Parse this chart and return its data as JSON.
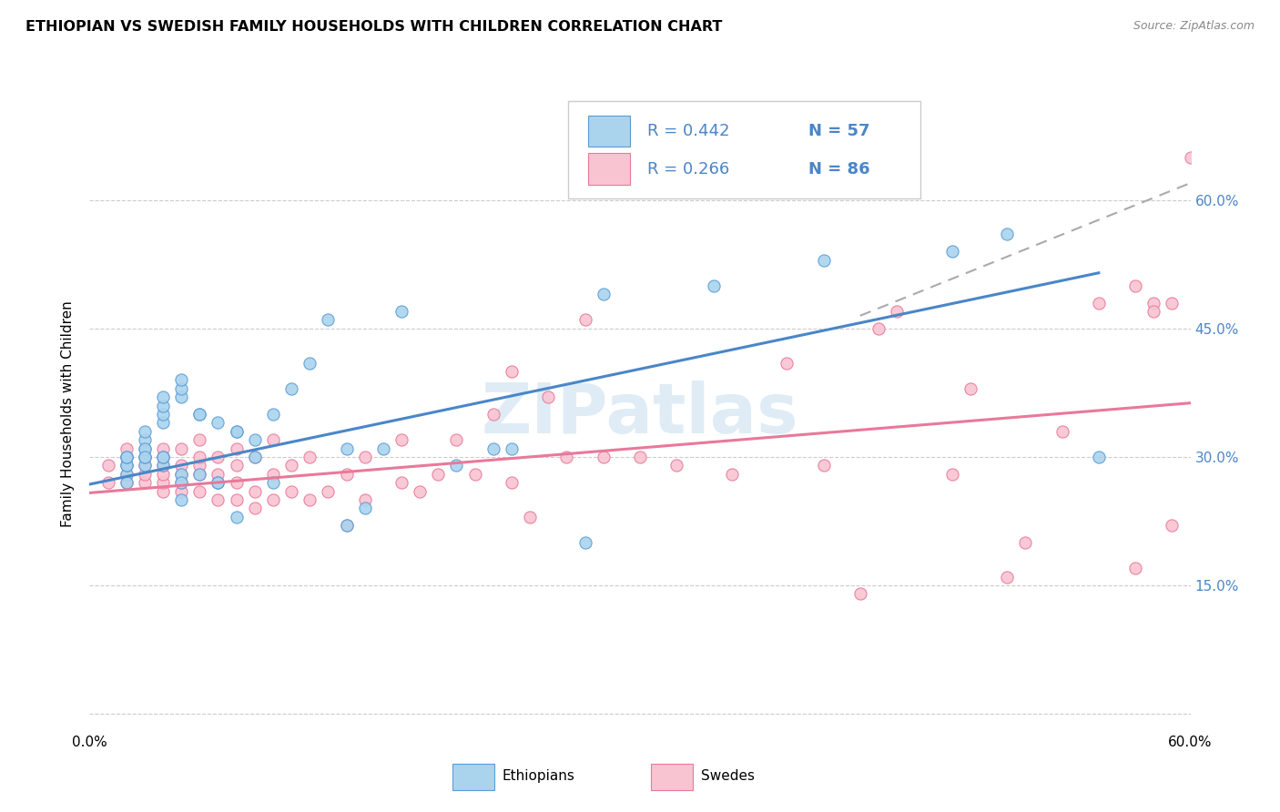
{
  "title": "ETHIOPIAN VS SWEDISH FAMILY HOUSEHOLDS WITH CHILDREN CORRELATION CHART",
  "source": "Source: ZipAtlas.com",
  "ylabel": "Family Households with Children",
  "watermark": "ZIPatlas",
  "xlim": [
    0.0,
    0.6
  ],
  "ylim": [
    -0.02,
    0.72
  ],
  "yticks": [
    0.0,
    0.15,
    0.3,
    0.45,
    0.6
  ],
  "ytick_labels": [
    "",
    "15.0%",
    "30.0%",
    "45.0%",
    "60.0%"
  ],
  "xticks": [
    0.0,
    0.1,
    0.2,
    0.3,
    0.4,
    0.5,
    0.6
  ],
  "xtick_labels": [
    "0.0%",
    "",
    "",
    "",
    "",
    "",
    "60.0%"
  ],
  "legend_R_ethiopian": "R = 0.442",
  "legend_N_ethiopian": "N = 57",
  "legend_R_swedish": "R = 0.266",
  "legend_N_swedish": "N = 86",
  "ethiopian_fill": "#aad4ee",
  "swedish_fill": "#f9c4d2",
  "ethiopian_edge": "#5b9bd5",
  "swedish_edge": "#e8799a",
  "trend_ethiopian_color": "#4a86c8",
  "trend_swedish_color": "#e8799a",
  "trend_dashed_color": "#aaaaaa",
  "ethiopian_scatter_x": [
    0.02,
    0.02,
    0.02,
    0.02,
    0.02,
    0.02,
    0.03,
    0.03,
    0.03,
    0.03,
    0.03,
    0.03,
    0.03,
    0.04,
    0.04,
    0.04,
    0.04,
    0.04,
    0.04,
    0.04,
    0.05,
    0.05,
    0.05,
    0.05,
    0.05,
    0.05,
    0.06,
    0.06,
    0.06,
    0.07,
    0.07,
    0.07,
    0.08,
    0.08,
    0.08,
    0.09,
    0.09,
    0.1,
    0.1,
    0.11,
    0.12,
    0.13,
    0.14,
    0.14,
    0.15,
    0.16,
    0.17,
    0.2,
    0.22,
    0.23,
    0.27,
    0.28,
    0.34,
    0.4,
    0.47,
    0.5,
    0.55
  ],
  "ethiopian_scatter_y": [
    0.28,
    0.29,
    0.29,
    0.3,
    0.3,
    0.27,
    0.29,
    0.3,
    0.31,
    0.32,
    0.33,
    0.31,
    0.3,
    0.34,
    0.35,
    0.36,
    0.37,
    0.29,
    0.3,
    0.3,
    0.37,
    0.38,
    0.39,
    0.28,
    0.27,
    0.25,
    0.35,
    0.35,
    0.28,
    0.34,
    0.27,
    0.27,
    0.33,
    0.33,
    0.23,
    0.32,
    0.3,
    0.35,
    0.27,
    0.38,
    0.41,
    0.46,
    0.31,
    0.22,
    0.24,
    0.31,
    0.47,
    0.29,
    0.31,
    0.31,
    0.2,
    0.49,
    0.5,
    0.53,
    0.54,
    0.56,
    0.3
  ],
  "swedish_scatter_x": [
    0.01,
    0.01,
    0.02,
    0.02,
    0.02,
    0.02,
    0.02,
    0.02,
    0.03,
    0.03,
    0.03,
    0.03,
    0.04,
    0.04,
    0.04,
    0.04,
    0.04,
    0.04,
    0.05,
    0.05,
    0.05,
    0.05,
    0.05,
    0.06,
    0.06,
    0.06,
    0.06,
    0.06,
    0.07,
    0.07,
    0.07,
    0.07,
    0.08,
    0.08,
    0.08,
    0.08,
    0.09,
    0.09,
    0.09,
    0.1,
    0.1,
    0.1,
    0.11,
    0.11,
    0.12,
    0.12,
    0.13,
    0.14,
    0.14,
    0.15,
    0.15,
    0.17,
    0.17,
    0.18,
    0.19,
    0.2,
    0.21,
    0.22,
    0.23,
    0.23,
    0.24,
    0.25,
    0.26,
    0.27,
    0.28,
    0.3,
    0.32,
    0.35,
    0.38,
    0.4,
    0.42,
    0.43,
    0.44,
    0.47,
    0.48,
    0.5,
    0.51,
    0.53,
    0.55,
    0.57,
    0.57,
    0.58,
    0.58,
    0.59,
    0.59,
    0.6
  ],
  "swedish_scatter_y": [
    0.27,
    0.29,
    0.27,
    0.28,
    0.29,
    0.3,
    0.3,
    0.31,
    0.27,
    0.28,
    0.29,
    0.3,
    0.26,
    0.27,
    0.28,
    0.29,
    0.3,
    0.31,
    0.26,
    0.27,
    0.28,
    0.29,
    0.31,
    0.26,
    0.28,
    0.29,
    0.3,
    0.32,
    0.25,
    0.27,
    0.28,
    0.3,
    0.25,
    0.27,
    0.29,
    0.31,
    0.24,
    0.26,
    0.3,
    0.25,
    0.28,
    0.32,
    0.26,
    0.29,
    0.25,
    0.3,
    0.26,
    0.22,
    0.28,
    0.25,
    0.3,
    0.27,
    0.32,
    0.26,
    0.28,
    0.32,
    0.28,
    0.35,
    0.27,
    0.4,
    0.23,
    0.37,
    0.3,
    0.46,
    0.3,
    0.3,
    0.29,
    0.28,
    0.41,
    0.29,
    0.14,
    0.45,
    0.47,
    0.28,
    0.38,
    0.16,
    0.2,
    0.33,
    0.48,
    0.5,
    0.17,
    0.48,
    0.47,
    0.48,
    0.22,
    0.65
  ],
  "trend_eth_x0": 0.0,
  "trend_eth_x1": 0.55,
  "trend_eth_y0": 0.268,
  "trend_eth_y1": 0.515,
  "trend_swe_x0": 0.0,
  "trend_swe_x1": 0.6,
  "trend_swe_y0": 0.258,
  "trend_swe_y1": 0.363,
  "trend_dash_x0": 0.42,
  "trend_dash_x1": 0.6,
  "trend_dash_y0": 0.465,
  "trend_dash_y1": 0.62
}
